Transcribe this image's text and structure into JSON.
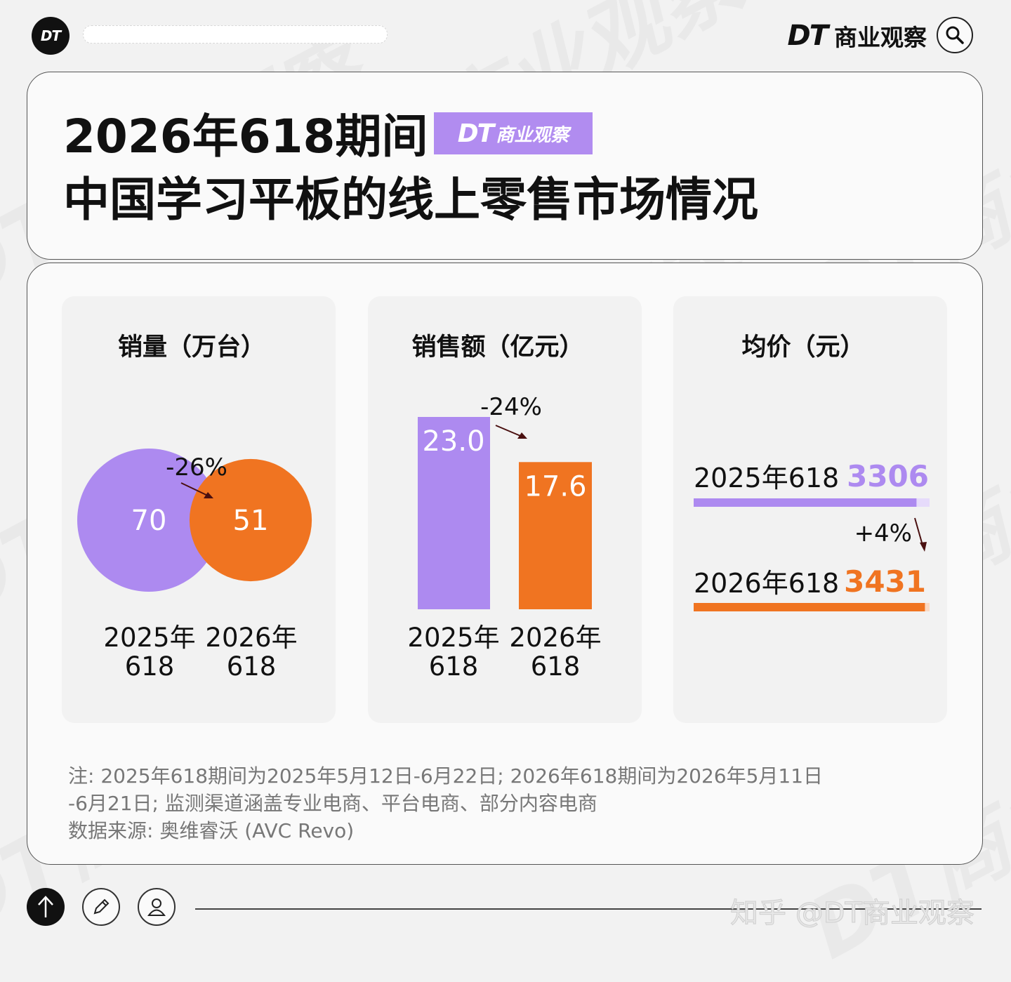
{
  "header": {
    "logo_text": "DT",
    "brand_logo": "DT",
    "brand_name": "商业观察",
    "search_icon": "search-icon"
  },
  "title": {
    "line1": "2026年618期间",
    "badge_dt": "DT",
    "badge_cn": "商业观察",
    "line2": "中国学习平板的线上零售市场情况"
  },
  "colors": {
    "accent_2025": "#ad8af0",
    "accent_2026": "#f07421",
    "badge": "#b18cf0"
  },
  "chart_data": [
    {
      "type": "bubble",
      "title": "销量（万台）",
      "categories": [
        "2025年\n618",
        "2026年\n618"
      ],
      "category_lines": [
        [
          "2025年",
          "618"
        ],
        [
          "2026年",
          "618"
        ]
      ],
      "values": [
        70,
        51
      ],
      "value_labels": [
        "70",
        "51"
      ],
      "change": "-26%"
    },
    {
      "type": "bar",
      "title": "销售额（亿元）",
      "categories": [
        "2025年\n618",
        "2026年\n618"
      ],
      "category_lines": [
        [
          "2025年",
          "618"
        ],
        [
          "2026年",
          "618"
        ]
      ],
      "values": [
        23.0,
        17.6
      ],
      "value_labels": [
        "23.0",
        "17.6"
      ],
      "change": "-24%"
    },
    {
      "type": "bar",
      "orientation": "horizontal",
      "title": "均价（元）",
      "categories": [
        "2025年618",
        "2026年618"
      ],
      "values": [
        3306,
        3431
      ],
      "value_labels": [
        "3306",
        "3431"
      ],
      "change": "+4%"
    }
  ],
  "note": {
    "line1": "注: 2025年618期间为2025年5月12日-6月22日; 2026年618期间为2026年5月11日",
    "line2": "-6月21日; 监测渠道涵盖专业电商、平台电商、部分内容电商",
    "line3": "数据来源: 奥维睿沃 (AVC Revo)"
  },
  "footer": {
    "watermark": "知乎 @DT商业观察",
    "icons": [
      "arrow-up-icon",
      "pencil-icon",
      "user-icon"
    ]
  },
  "watermark_bg": "DT商业观察"
}
